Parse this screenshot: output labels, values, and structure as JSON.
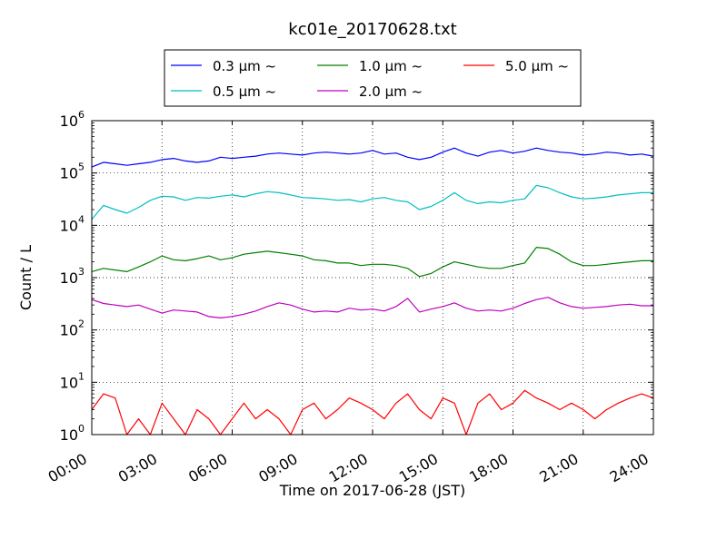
{
  "chart_data": {
    "type": "line",
    "title": "kc01e_20170628.txt",
    "xlabel": "Time on 2017-06-28 (JST)",
    "ylabel": "Count / L",
    "y_scale": "log",
    "ylim": [
      1,
      1000000
    ],
    "xlim": [
      "00:00",
      "24:00"
    ],
    "grid": true,
    "legend_position": "top-center",
    "x_ticks": [
      "00:00",
      "03:00",
      "06:00",
      "09:00",
      "12:00",
      "15:00",
      "18:00",
      "21:00",
      "24:00"
    ],
    "y_ticks": [
      {
        "base": "10",
        "exp": "0"
      },
      {
        "base": "10",
        "exp": "1"
      },
      {
        "base": "10",
        "exp": "2"
      },
      {
        "base": "10",
        "exp": "3"
      },
      {
        "base": "10",
        "exp": "4"
      },
      {
        "base": "10",
        "exp": "5"
      },
      {
        "base": "10",
        "exp": "6"
      }
    ],
    "series": [
      {
        "name": "0.3 μm ~",
        "color": "#0000ff",
        "values": [
          130000,
          160000,
          150000,
          140000,
          150000,
          160000,
          180000,
          190000,
          170000,
          160000,
          170000,
          200000,
          190000,
          200000,
          210000,
          230000,
          240000,
          230000,
          220000,
          240000,
          250000,
          240000,
          230000,
          240000,
          270000,
          230000,
          240000,
          200000,
          180000,
          200000,
          250000,
          300000,
          240000,
          210000,
          250000,
          270000,
          240000,
          260000,
          300000,
          270000,
          250000,
          240000,
          220000,
          230000,
          250000,
          240000,
          220000,
          230000,
          210000
        ]
      },
      {
        "name": "0.5 μm ~",
        "color": "#00bfbf",
        "values": [
          13000,
          24000,
          20000,
          17000,
          22000,
          30000,
          36000,
          35000,
          30000,
          34000,
          33000,
          36000,
          38000,
          35000,
          40000,
          44000,
          42000,
          38000,
          34000,
          33000,
          32000,
          30000,
          31000,
          28000,
          32000,
          34000,
          30000,
          28000,
          20000,
          23000,
          30000,
          42000,
          30000,
          26000,
          28000,
          27000,
          30000,
          32000,
          58000,
          52000,
          42000,
          35000,
          32000,
          33000,
          35000,
          38000,
          40000,
          42000,
          42000
        ]
      },
      {
        "name": "1.0 μm ~",
        "color": "#008000",
        "values": [
          1300,
          1500,
          1400,
          1300,
          1600,
          2000,
          2600,
          2200,
          2100,
          2300,
          2600,
          2200,
          2400,
          2800,
          3000,
          3200,
          3000,
          2800,
          2600,
          2200,
          2100,
          1900,
          1900,
          1700,
          1800,
          1800,
          1700,
          1500,
          1050,
          1200,
          1600,
          2000,
          1800,
          1600,
          1500,
          1500,
          1700,
          1900,
          3800,
          3600,
          2800,
          2000,
          1700,
          1700,
          1800,
          1900,
          2000,
          2100,
          2100
        ]
      },
      {
        "name": "2.0 μm ~",
        "color": "#bf00bf",
        "values": [
          380,
          320,
          300,
          280,
          300,
          250,
          210,
          240,
          230,
          220,
          180,
          170,
          180,
          200,
          230,
          280,
          330,
          300,
          250,
          220,
          230,
          220,
          260,
          240,
          250,
          230,
          280,
          400,
          220,
          250,
          280,
          330,
          260,
          230,
          240,
          230,
          260,
          320,
          380,
          420,
          330,
          280,
          260,
          270,
          280,
          300,
          310,
          290,
          290
        ]
      },
      {
        "name": "5.0 μm ~",
        "color": "#ff0000",
        "values": [
          3,
          6,
          5,
          1,
          2,
          1,
          4,
          2,
          1,
          3,
          2,
          1,
          2,
          4,
          2,
          3,
          2,
          1,
          3,
          4,
          2,
          3,
          5,
          4,
          3,
          2,
          4,
          6,
          3,
          2,
          5,
          4,
          1,
          4,
          6,
          3,
          4,
          7,
          5,
          4,
          3,
          4,
          3,
          2,
          3,
          4,
          5,
          6,
          5
        ]
      }
    ]
  }
}
